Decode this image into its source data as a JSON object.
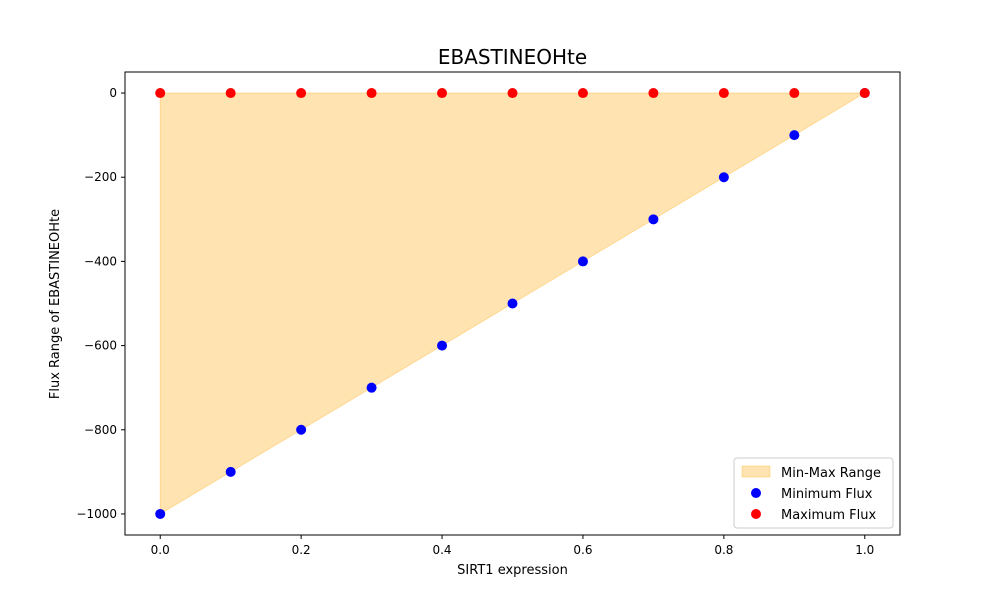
{
  "chart_data": {
    "type": "scatter",
    "title": "EBASTINEOHte",
    "xlabel": "SIRT1 expression",
    "ylabel": "Flux Range of EBASTINEOHte",
    "xlim": [
      -0.05,
      1.05
    ],
    "ylim": [
      -1050,
      50
    ],
    "xticks": [
      0.0,
      0.2,
      0.4,
      0.6,
      0.8,
      1.0
    ],
    "xtick_labels": [
      "0.0",
      "0.2",
      "0.4",
      "0.6",
      "0.8",
      "1.0"
    ],
    "yticks": [
      0,
      -200,
      -400,
      -600,
      -800,
      -1000
    ],
    "ytick_labels": [
      "0",
      "−200",
      "−400",
      "−600",
      "−800",
      "−1000"
    ],
    "x": [
      0.0,
      0.1,
      0.2,
      0.3,
      0.4,
      0.5,
      0.6,
      0.7,
      0.8,
      0.9,
      1.0
    ],
    "series": [
      {
        "name": "Minimum Flux",
        "color": "#0000ff",
        "values": [
          -1000,
          -900,
          -800,
          -700,
          -600,
          -500,
          -400,
          -300,
          -200,
          -100,
          0
        ]
      },
      {
        "name": "Maximum Flux",
        "color": "#ff0000",
        "values": [
          0,
          0,
          0,
          0,
          0,
          0,
          0,
          0,
          0,
          0,
          0
        ]
      }
    ],
    "fill": {
      "name": "Min-Max Range",
      "color": "#ffa500",
      "opacity": 0.3
    },
    "legend": {
      "position": "lower-right",
      "entries": [
        "Min-Max Range",
        "Minimum Flux",
        "Maximum Flux"
      ]
    },
    "grid": false
  }
}
